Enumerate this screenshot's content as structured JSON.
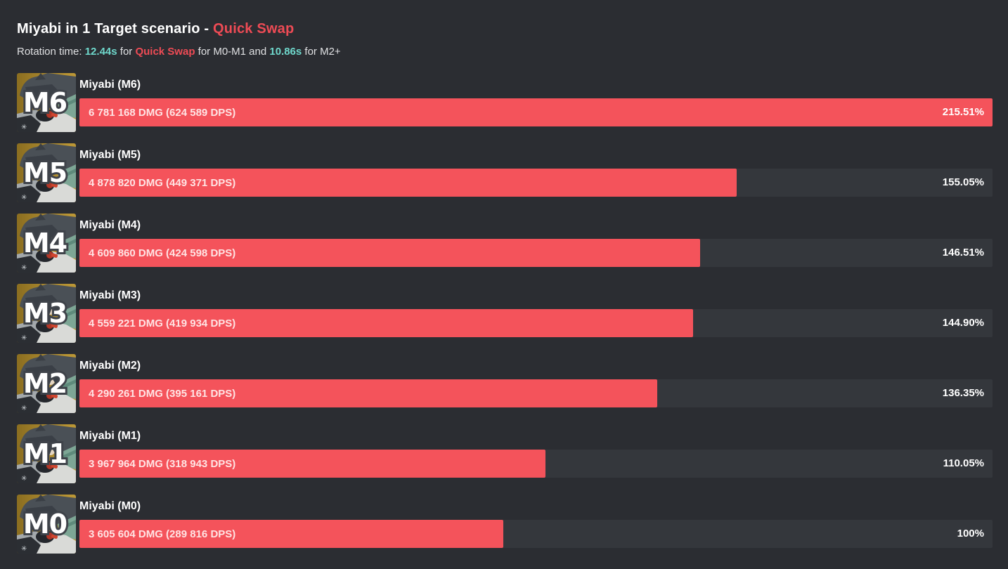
{
  "header": {
    "title_main": "Miyabi in 1 Target scenario - ",
    "title_mode": "Quick Swap",
    "rotation": {
      "prefix": "Rotation time: ",
      "time_quick_swap": "12.44s",
      "mid1": " for ",
      "mode": "Quick Swap",
      "mid2": " for M0-M1 and ",
      "time_m2_plus": "10.86s",
      "suffix": " for M2+"
    }
  },
  "colors": {
    "page_bg": "#2b2d32",
    "track_bg": "#34373c",
    "bar_red": "#f4535b",
    "accent_red": "#ee4b55",
    "accent_teal": "#6fd8cc",
    "text_primary": "#ffffff",
    "text_secondary": "#dfe0e2",
    "bar_text": "#ffe4e4"
  },
  "chart_data": {
    "type": "bar",
    "orientation": "horizontal",
    "title": "Miyabi in 1 Target scenario - Quick Swap",
    "subtitle": "Rotation time: 12.44s for Quick Swap for M0-M1 and 10.86s for M2+",
    "value_unit": "percent relative to M0 = 100%",
    "xlim": [
      0,
      215.51
    ],
    "max_percent": 215.51,
    "legend": "none",
    "grid": false,
    "rows": [
      {
        "badge": "M6",
        "name": "Miyabi (M6)",
        "dmg": 6781168,
        "dps": 624589,
        "bar_label": "6 781 168 DMG (624 589 DPS)",
        "percent": 215.51,
        "percent_label": "215.51%"
      },
      {
        "badge": "M5",
        "name": "Miyabi (M5)",
        "dmg": 4878820,
        "dps": 449371,
        "bar_label": "4 878 820 DMG (449 371 DPS)",
        "percent": 155.05,
        "percent_label": "155.05%"
      },
      {
        "badge": "M4",
        "name": "Miyabi (M4)",
        "dmg": 4609860,
        "dps": 424598,
        "bar_label": "4 609 860 DMG (424 598 DPS)",
        "percent": 146.51,
        "percent_label": "146.51%"
      },
      {
        "badge": "M3",
        "name": "Miyabi (M3)",
        "dmg": 4559221,
        "dps": 419934,
        "bar_label": "4 559 221 DMG (419 934 DPS)",
        "percent": 144.9,
        "percent_label": "144.90%"
      },
      {
        "badge": "M2",
        "name": "Miyabi (M2)",
        "dmg": 4290261,
        "dps": 395161,
        "bar_label": "4 290 261 DMG (395 161 DPS)",
        "percent": 136.35,
        "percent_label": "136.35%"
      },
      {
        "badge": "M1",
        "name": "Miyabi (M1)",
        "dmg": 3967964,
        "dps": 318943,
        "bar_label": "3 967 964 DMG (318 943 DPS)",
        "percent": 110.05,
        "percent_label": "110.05%"
      },
      {
        "badge": "M0",
        "name": "Miyabi (M0)",
        "dmg": 3605604,
        "dps": 289816,
        "bar_label": "3 605 604 DMG (289 816 DPS)",
        "percent": 100,
        "percent_label": "100%"
      }
    ]
  }
}
